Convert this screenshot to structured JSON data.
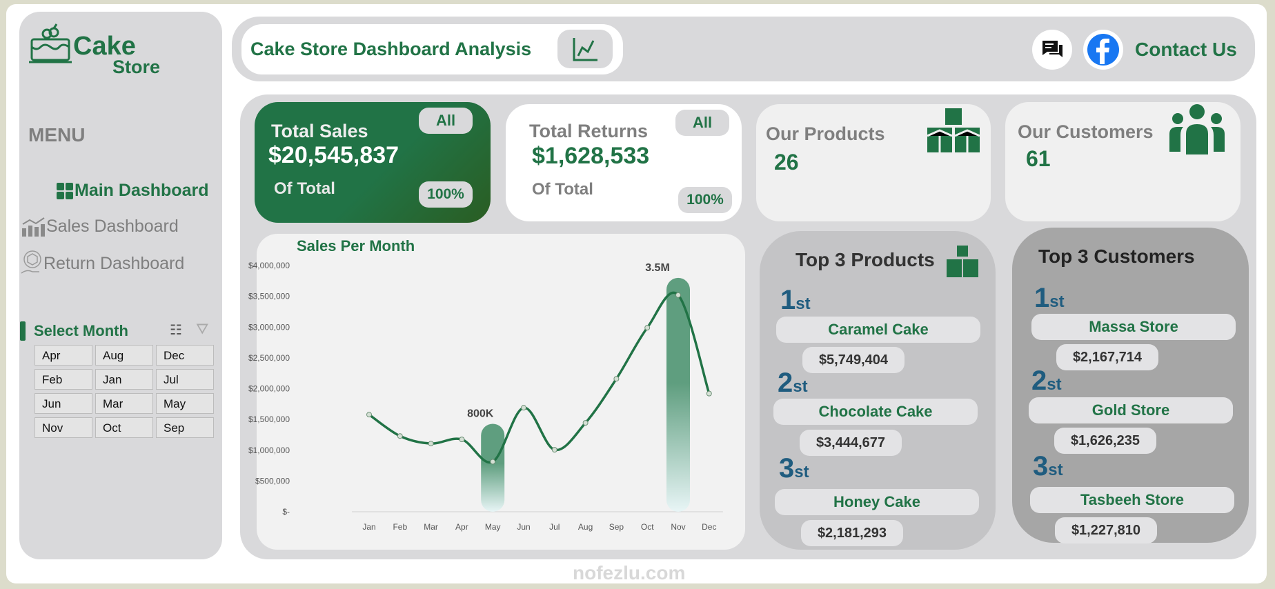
{
  "brand": {
    "line1": "Cake",
    "line2": "Store"
  },
  "sidebar": {
    "menu_label": "MENU",
    "items": [
      {
        "label": "Main Dashboard",
        "active": true
      },
      {
        "label": "Sales Dashboard"
      },
      {
        "label": "Return Dashboard"
      }
    ]
  },
  "slicer": {
    "title": "Select Month",
    "months": [
      "Apr",
      "Aug",
      "Dec",
      "Feb",
      "Jan",
      "Jul",
      "Jun",
      "Mar",
      "May",
      "Nov",
      "Oct",
      "Sep"
    ]
  },
  "header": {
    "title": "Cake Store Dashboard Analysis",
    "contact": "Contact Us"
  },
  "kpis": {
    "sales": {
      "title": "Total Sales",
      "value": "$20,545,837",
      "sub": "Of Total",
      "filter": "All",
      "pct": "100%"
    },
    "returns": {
      "title": "Total Returns",
      "value": "$1,628,533",
      "sub": "Of Total",
      "filter": "All",
      "pct": "100%"
    },
    "products": {
      "title": "Our Products",
      "value": "26"
    },
    "customers": {
      "title": "Our Customers",
      "value": "61"
    }
  },
  "top_products": {
    "title": "Top 3 Products",
    "items": [
      {
        "rank": "1",
        "suffix": "st",
        "name": "Caramel Cake",
        "value": "$5,749,404"
      },
      {
        "rank": "2",
        "suffix": "st",
        "name": "Chocolate Cake",
        "value": "$3,444,677"
      },
      {
        "rank": "3",
        "suffix": "st",
        "name": "Honey Cake",
        "value": "$2,181,293"
      }
    ]
  },
  "top_customers": {
    "title": "Top 3 Customers",
    "items": [
      {
        "rank": "1",
        "suffix": "st",
        "name": "Massa Store",
        "value": "$2,167,714"
      },
      {
        "rank": "2",
        "suffix": "st",
        "name": "Gold Store",
        "value": "$1,626,235"
      },
      {
        "rank": "3",
        "suffix": "st",
        "name": "Tasbeeh Store",
        "value": "$1,227,810"
      }
    ]
  },
  "colors": {
    "accent": "#217346",
    "rank": "#1f5c7f",
    "panel": "#d9d9db"
  },
  "watermark": "nofezlu.com",
  "chart_data": {
    "type": "line",
    "title": "Sales Per Month",
    "categories": [
      "Jan",
      "Feb",
      "Mar",
      "Apr",
      "May",
      "Jun",
      "Jul",
      "Aug",
      "Sep",
      "Oct",
      "Nov",
      "Dec"
    ],
    "values": [
      1578000,
      1230000,
      1108000,
      1175000,
      813000,
      1690000,
      1007000,
      1444000,
      2160000,
      2990000,
      3520000,
      1920000
    ],
    "ylim": [
      0,
      4000000
    ],
    "yticks": [
      "$-",
      "$500,000",
      "$1,000,000",
      "$1,500,000",
      "$2,000,000",
      "$2,500,000",
      "$3,000,000",
      "$3,500,000",
      "$4,000,000"
    ],
    "highlights": [
      {
        "category": "May",
        "label": "800K"
      },
      {
        "category": "Nov",
        "label": "3.5M"
      }
    ],
    "grid": false
  }
}
